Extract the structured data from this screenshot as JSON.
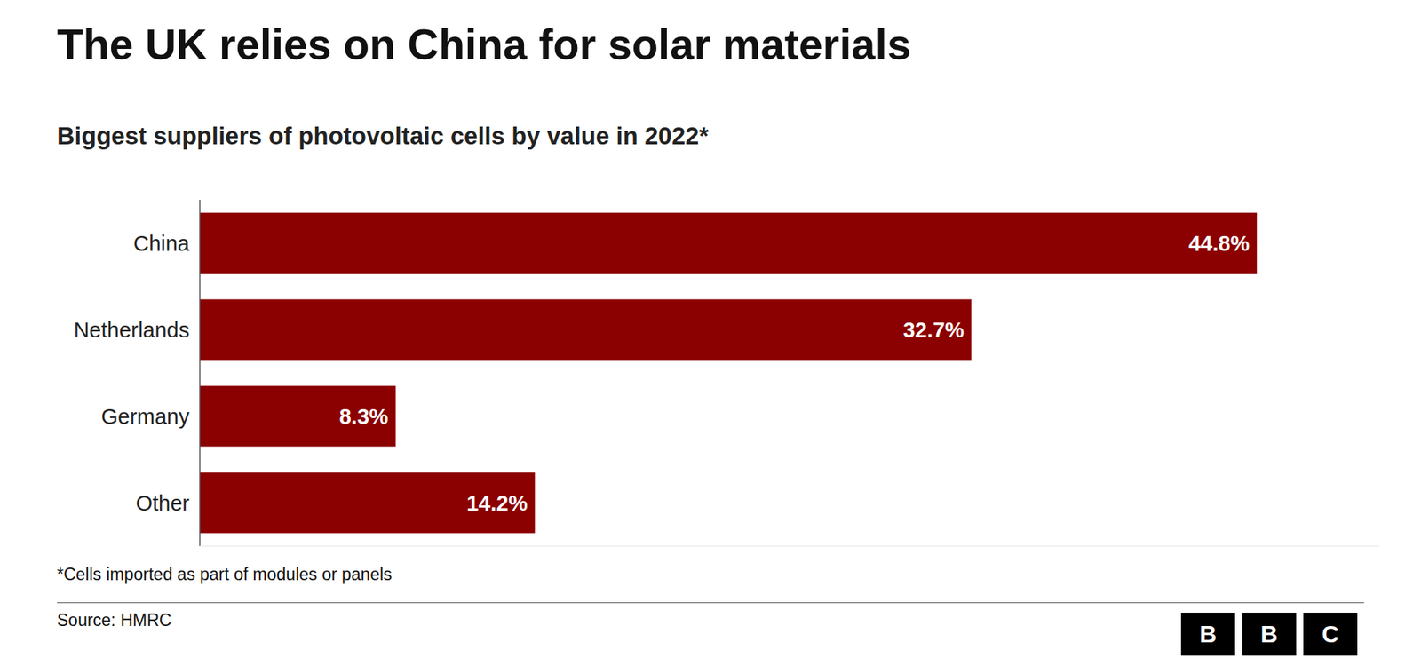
{
  "chart_data": {
    "type": "bar",
    "orientation": "horizontal",
    "title": "The UK relies on China for solar materials",
    "subtitle": "Biggest suppliers of photovoltaic cells by value in 2022*",
    "categories": [
      "China",
      "Netherlands",
      "Germany",
      "Other"
    ],
    "values": [
      44.8,
      32.7,
      8.3,
      14.2
    ],
    "value_labels": [
      "44.8%",
      "32.7%",
      "8.3%",
      "14.2%"
    ],
    "data_labels": true,
    "color": "#8B0000",
    "xlim": [
      0,
      50
    ],
    "tick_labels": "y",
    "grid": false,
    "annotations": [
      "*Cells imported as part of modules or panels",
      "Source: HMRC",
      "BBC"
    ]
  }
}
